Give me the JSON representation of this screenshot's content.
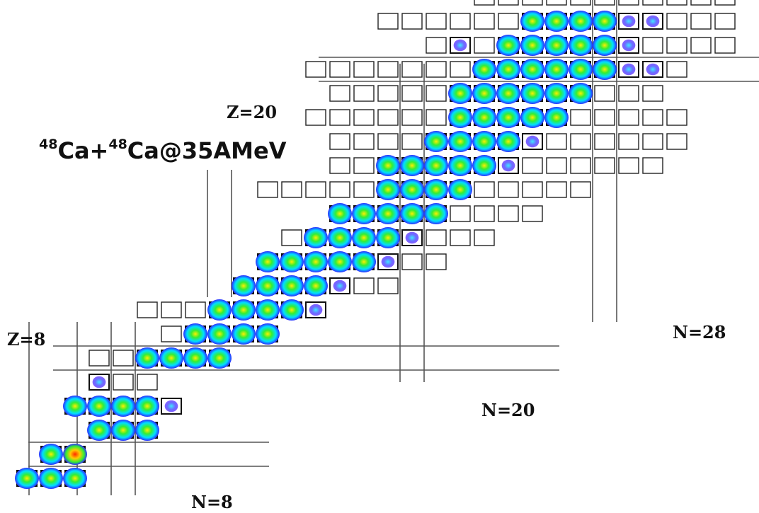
{
  "reaction_label": {
    "mass1": "48",
    "el1": "Ca",
    "plus": "+",
    "mass2": "48",
    "el2": "Ca",
    "energy": "@35AMeV"
  },
  "chart_data": {
    "type": "heatmap",
    "title": "",
    "xlabel": "",
    "ylabel": "",
    "x_quantity": "N",
    "y_quantity": "Z",
    "xlim": [
      3,
      34
    ],
    "ylim": [
      1,
      23
    ],
    "grid": false,
    "colors": {
      "box": "#222222",
      "magic_line": "#555555",
      "low": "#3a3aff",
      "mid": "#00e0ff",
      "high_mid": "#33ee33",
      "peak": "#ff2a00"
    },
    "magic_numbers": [
      {
        "label": "Z=8",
        "axis": "Z",
        "value": 8
      },
      {
        "label": "Z=20",
        "axis": "Z",
        "value": 20
      },
      {
        "label": "N=8",
        "axis": "N",
        "value": 8
      },
      {
        "label": "N=20",
        "axis": "N",
        "value": 20
      },
      {
        "label": "N=28",
        "axis": "N",
        "value": 28
      }
    ],
    "rows": [
      {
        "z": 3,
        "boxes": [
          4,
          5,
          6
        ],
        "blobs": [
          [
            4,
            0.6
          ],
          [
            5,
            0.7
          ],
          [
            6,
            0.55
          ]
        ]
      },
      {
        "z": 4,
        "boxes": [
          5,
          6
        ],
        "blobs": [
          [
            5,
            0.65
          ],
          [
            6,
            0.9
          ]
        ]
      },
      {
        "z": 5,
        "boxes": [],
        "blobs": [
          [
            7,
            0.35
          ],
          [
            8,
            0.3
          ],
          [
            9,
            0.25
          ]
        ]
      },
      {
        "z": 6,
        "boxes": [
          9,
          10
        ],
        "blobs": [
          [
            6,
            0.2
          ],
          [
            7,
            0.38
          ],
          [
            8,
            0.42
          ],
          [
            9,
            0.3
          ],
          [
            10,
            0.18
          ]
        ]
      },
      {
        "z": 7,
        "boxes": [
          7,
          8,
          9
        ],
        "blobs": [
          [
            7,
            0.15
          ]
        ]
      },
      {
        "z": 8,
        "boxes": [
          7,
          8,
          9,
          10
        ],
        "blobs": [
          [
            9,
            0.4
          ],
          [
            10,
            0.5
          ],
          [
            11,
            0.45
          ],
          [
            12,
            0.3
          ]
        ]
      },
      {
        "z": 9,
        "boxes": [
          10,
          11
        ],
        "blobs": [
          [
            11,
            0.32
          ],
          [
            12,
            0.45
          ],
          [
            13,
            0.38
          ],
          [
            14,
            0.2
          ]
        ]
      },
      {
        "z": 10,
        "boxes": [
          9,
          10,
          11,
          12,
          13,
          14,
          15
        ],
        "blobs": [
          [
            12,
            0.25
          ],
          [
            13,
            0.5
          ],
          [
            14,
            0.45
          ],
          [
            15,
            0.3
          ],
          [
            16,
            0.15
          ]
        ]
      },
      {
        "z": 11,
        "boxes": [
          15,
          16,
          17,
          18,
          19
        ],
        "blobs": [
          [
            13,
            0.22
          ],
          [
            14,
            0.38
          ],
          [
            15,
            0.42
          ],
          [
            16,
            0.3
          ],
          [
            17,
            0.18
          ]
        ]
      },
      {
        "z": 12,
        "boxes": [
          16,
          17,
          18,
          19,
          20,
          21
        ],
        "blobs": [
          [
            14,
            0.25
          ],
          [
            15,
            0.42
          ],
          [
            16,
            0.55
          ],
          [
            17,
            0.45
          ],
          [
            18,
            0.28
          ],
          [
            19,
            0.1
          ]
        ]
      },
      {
        "z": 13,
        "boxes": [
          15,
          16,
          17,
          18,
          19,
          20,
          21,
          22,
          23
        ],
        "blobs": [
          [
            16,
            0.35
          ],
          [
            17,
            0.42
          ],
          [
            18,
            0.4
          ],
          [
            19,
            0.25
          ],
          [
            20,
            0.12
          ]
        ]
      },
      {
        "z": 14,
        "boxes": [
          17,
          18,
          19,
          20,
          21,
          22,
          23,
          24,
          25
        ],
        "blobs": [
          [
            17,
            0.3
          ],
          [
            18,
            0.5
          ],
          [
            19,
            0.55
          ],
          [
            20,
            0.38
          ],
          [
            21,
            0.2
          ]
        ]
      },
      {
        "z": 15,
        "boxes": [
          14,
          15,
          16,
          17,
          18,
          19,
          20,
          21,
          22,
          23,
          24,
          25,
          26,
          27
        ],
        "blobs": [
          [
            19,
            0.38
          ],
          [
            20,
            0.42
          ],
          [
            21,
            0.35
          ],
          [
            22,
            0.2
          ]
        ]
      },
      {
        "z": 16,
        "boxes": [
          17,
          18,
          19,
          20,
          21,
          22,
          23,
          24,
          25,
          26,
          27,
          28,
          29,
          30
        ],
        "blobs": [
          [
            19,
            0.25
          ],
          [
            20,
            0.45
          ],
          [
            21,
            0.55
          ],
          [
            22,
            0.48
          ],
          [
            23,
            0.3
          ],
          [
            24,
            0.15
          ]
        ]
      },
      {
        "z": 17,
        "boxes": [
          17,
          18,
          19,
          20,
          21,
          22,
          23,
          24,
          25,
          26,
          27,
          28,
          29,
          30,
          31
        ],
        "blobs": [
          [
            21,
            0.4
          ],
          [
            22,
            0.5
          ],
          [
            23,
            0.45
          ],
          [
            24,
            0.3
          ],
          [
            25,
            0.15
          ]
        ]
      },
      {
        "z": 18,
        "boxes": [
          16,
          17,
          18,
          19,
          20,
          21,
          22,
          23,
          24,
          25,
          26,
          27,
          28,
          29,
          30,
          31
        ],
        "blobs": [
          [
            22,
            0.35
          ],
          [
            23,
            0.45
          ],
          [
            24,
            0.5
          ],
          [
            25,
            0.38
          ],
          [
            26,
            0.22
          ]
        ]
      },
      {
        "z": 19,
        "boxes": [
          17,
          18,
          19,
          20,
          21,
          22,
          23,
          24,
          25,
          26,
          27,
          28,
          29,
          30
        ],
        "blobs": [
          [
            22,
            0.2
          ],
          [
            23,
            0.38
          ],
          [
            24,
            0.42
          ],
          [
            25,
            0.4
          ],
          [
            26,
            0.3
          ],
          [
            27,
            0.2
          ]
        ]
      },
      {
        "z": 20,
        "boxes": [
          16,
          17,
          18,
          19,
          20,
          21,
          22,
          23,
          24,
          25,
          26,
          27,
          28,
          29,
          30,
          31
        ],
        "blobs": [
          [
            23,
            0.25
          ],
          [
            24,
            0.38
          ],
          [
            25,
            0.45
          ],
          [
            26,
            0.42
          ],
          [
            27,
            0.35
          ],
          [
            28,
            0.28
          ],
          [
            29,
            0.18
          ],
          [
            30,
            0.15
          ]
        ]
      },
      {
        "z": 21,
        "boxes": [
          21,
          22,
          23,
          24,
          25,
          26,
          27,
          28,
          29,
          30,
          31,
          32,
          33
        ],
        "blobs": [
          [
            22,
            0.1
          ],
          [
            24,
            0.3
          ],
          [
            25,
            0.36
          ],
          [
            26,
            0.4
          ],
          [
            27,
            0.35
          ],
          [
            28,
            0.25
          ],
          [
            29,
            0.15
          ]
        ]
      },
      {
        "z": 22,
        "boxes": [
          19,
          20,
          21,
          22,
          23,
          24,
          25,
          26,
          27,
          28,
          29,
          30,
          31,
          32,
          33
        ],
        "blobs": [
          [
            25,
            0.2
          ],
          [
            26,
            0.3
          ],
          [
            27,
            0.3
          ],
          [
            28,
            0.25
          ],
          [
            29,
            0.15
          ],
          [
            30,
            0.08
          ]
        ]
      },
      {
        "z": 23,
        "boxes": [
          23,
          24,
          25,
          26,
          27,
          28,
          29,
          30,
          31,
          32,
          33
        ],
        "blobs": []
      },
      {
        "z": 24,
        "boxes": [
          21,
          22,
          23,
          24,
          25,
          26,
          27,
          28,
          29,
          30,
          31,
          32,
          33
        ],
        "blobs": []
      },
      {
        "z": 25,
        "boxes": [
          25,
          26,
          27,
          28,
          29,
          30,
          31,
          32,
          33
        ],
        "blobs": []
      }
    ]
  }
}
